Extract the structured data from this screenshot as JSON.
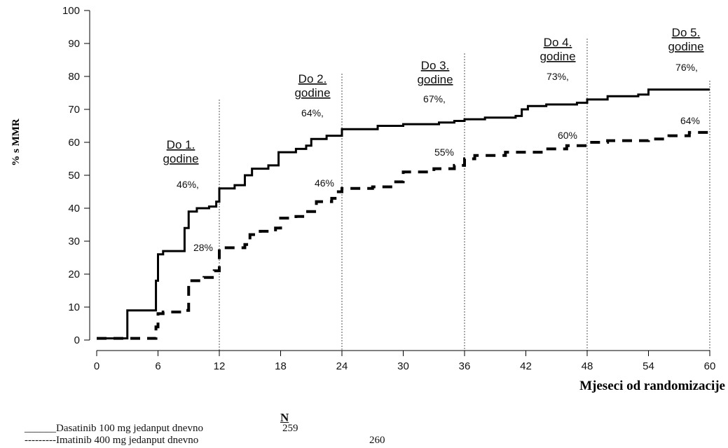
{
  "chart_data": {
    "type": "line",
    "ylabel": "% s MMR",
    "xlabel": "Mjeseci od randomizacije",
    "xlim": [
      0,
      60
    ],
    "ylim": [
      0,
      100
    ],
    "x_ticks": [
      0,
      6,
      12,
      18,
      24,
      30,
      36,
      42,
      48,
      54,
      60
    ],
    "y_ticks": [
      0,
      10,
      20,
      30,
      40,
      50,
      60,
      70,
      80,
      90,
      100
    ],
    "grid": false,
    "milestones": [
      {
        "x": 12,
        "label_line1": "Do 1.",
        "label_line2": "godine",
        "dasatinib": "46%,",
        "imatinib": "28%"
      },
      {
        "x": 24,
        "label_line1": "Do 2.",
        "label_line2": "godine",
        "dasatinib": "64%,",
        "imatinib": "46%"
      },
      {
        "x": 36,
        "label_line1": "Do 3.",
        "label_line2": "godine",
        "dasatinib": "67%,",
        "imatinib": "55%"
      },
      {
        "x": 48,
        "label_line1": "Do 4.",
        "label_line2": "godine",
        "dasatinib": "73%,",
        "imatinib": "60%"
      },
      {
        "x": 60,
        "label_line1": "Do 5.",
        "label_line2": "godine",
        "dasatinib": "76%,",
        "imatinib": "64%"
      }
    ],
    "series": [
      {
        "name": "Dasatinib 100 mg jedanput dnevno",
        "style": "solid",
        "color": "#000000",
        "points": [
          [
            0,
            0.5
          ],
          [
            2.8,
            0.5
          ],
          [
            3,
            9
          ],
          [
            5.6,
            9
          ],
          [
            5.8,
            18
          ],
          [
            6,
            26
          ],
          [
            6.5,
            27
          ],
          [
            8.3,
            27
          ],
          [
            8.6,
            34
          ],
          [
            9,
            39
          ],
          [
            9.8,
            40
          ],
          [
            11,
            40.5
          ],
          [
            11.7,
            42
          ],
          [
            12,
            46
          ],
          [
            13.5,
            47
          ],
          [
            14.5,
            50
          ],
          [
            15.2,
            52
          ],
          [
            16.8,
            53
          ],
          [
            17.8,
            57
          ],
          [
            19.5,
            58
          ],
          [
            20.5,
            59
          ],
          [
            21,
            61
          ],
          [
            22.5,
            62
          ],
          [
            24,
            64
          ],
          [
            26.5,
            64
          ],
          [
            27.5,
            65
          ],
          [
            30,
            65.5
          ],
          [
            33.5,
            66
          ],
          [
            35,
            66.5
          ],
          [
            36,
            67
          ],
          [
            38,
            67.5
          ],
          [
            41,
            68
          ],
          [
            41.6,
            70
          ],
          [
            42.2,
            71
          ],
          [
            44,
            71.5
          ],
          [
            47,
            72
          ],
          [
            48,
            73
          ],
          [
            49,
            73
          ],
          [
            50,
            74
          ],
          [
            53,
            74.5
          ],
          [
            54,
            76
          ],
          [
            57,
            76
          ],
          [
            60,
            76
          ]
        ]
      },
      {
        "name": "Imatinib 400 mg jedanput dnevno",
        "style": "dashed",
        "color": "#000000",
        "points": [
          [
            0,
            0.5
          ],
          [
            5.5,
            0.5
          ],
          [
            5.8,
            4
          ],
          [
            6,
            8
          ],
          [
            6.5,
            8.5
          ],
          [
            8.5,
            9
          ],
          [
            9,
            18
          ],
          [
            10.5,
            19
          ],
          [
            11.5,
            21
          ],
          [
            12,
            28
          ],
          [
            13,
            28
          ],
          [
            14.5,
            29
          ],
          [
            15,
            32
          ],
          [
            16,
            33
          ],
          [
            17.5,
            34
          ],
          [
            18,
            37
          ],
          [
            19.5,
            37.5
          ],
          [
            20.5,
            39
          ],
          [
            21.5,
            42
          ],
          [
            23,
            43
          ],
          [
            23.5,
            45
          ],
          [
            24,
            46
          ],
          [
            27,
            46.5
          ],
          [
            29,
            48
          ],
          [
            30,
            51
          ],
          [
            32,
            51
          ],
          [
            33,
            52
          ],
          [
            35,
            53
          ],
          [
            36,
            55
          ],
          [
            37,
            56
          ],
          [
            40,
            57
          ],
          [
            44,
            58
          ],
          [
            46,
            59
          ],
          [
            48,
            60
          ],
          [
            50,
            60.5
          ],
          [
            54,
            61
          ],
          [
            56,
            62
          ],
          [
            58,
            63
          ],
          [
            60,
            64
          ]
        ]
      }
    ]
  },
  "legend": {
    "n_header": "N",
    "entries": [
      {
        "line": "______",
        "label": "Dasatinib 100 mg jedanput dnevno",
        "n": "259"
      },
      {
        "line": "---------",
        "label": "Imatinib 400 mg jedanput dnevno",
        "n": "260"
      }
    ]
  }
}
